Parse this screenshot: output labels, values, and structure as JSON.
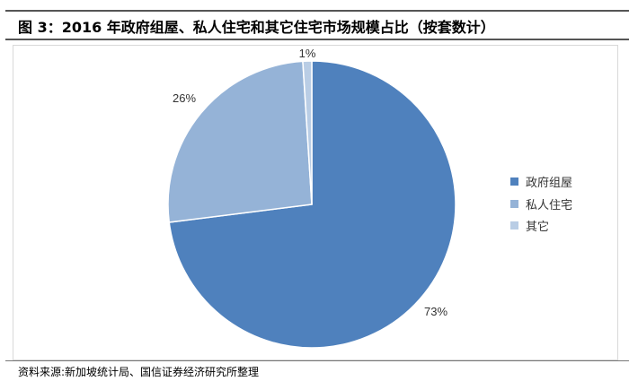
{
  "title": "图 3：2016 年政府组屋、私人住宅和其它住宅市场规模占比（按套数计）",
  "source": "资料来源:新加坡统计局、国信证券经济研究所整理",
  "chart_data": {
    "type": "pie",
    "categories": [
      "政府组屋",
      "私人住宅",
      "其它"
    ],
    "values": [
      73,
      26,
      1
    ],
    "data_labels": [
      "73%",
      "26%",
      "1%"
    ],
    "colors": [
      "#4F81BD",
      "#95B3D7",
      "#B9CDE5"
    ],
    "legend": "right",
    "start": "top",
    "direction": "clockwise"
  }
}
